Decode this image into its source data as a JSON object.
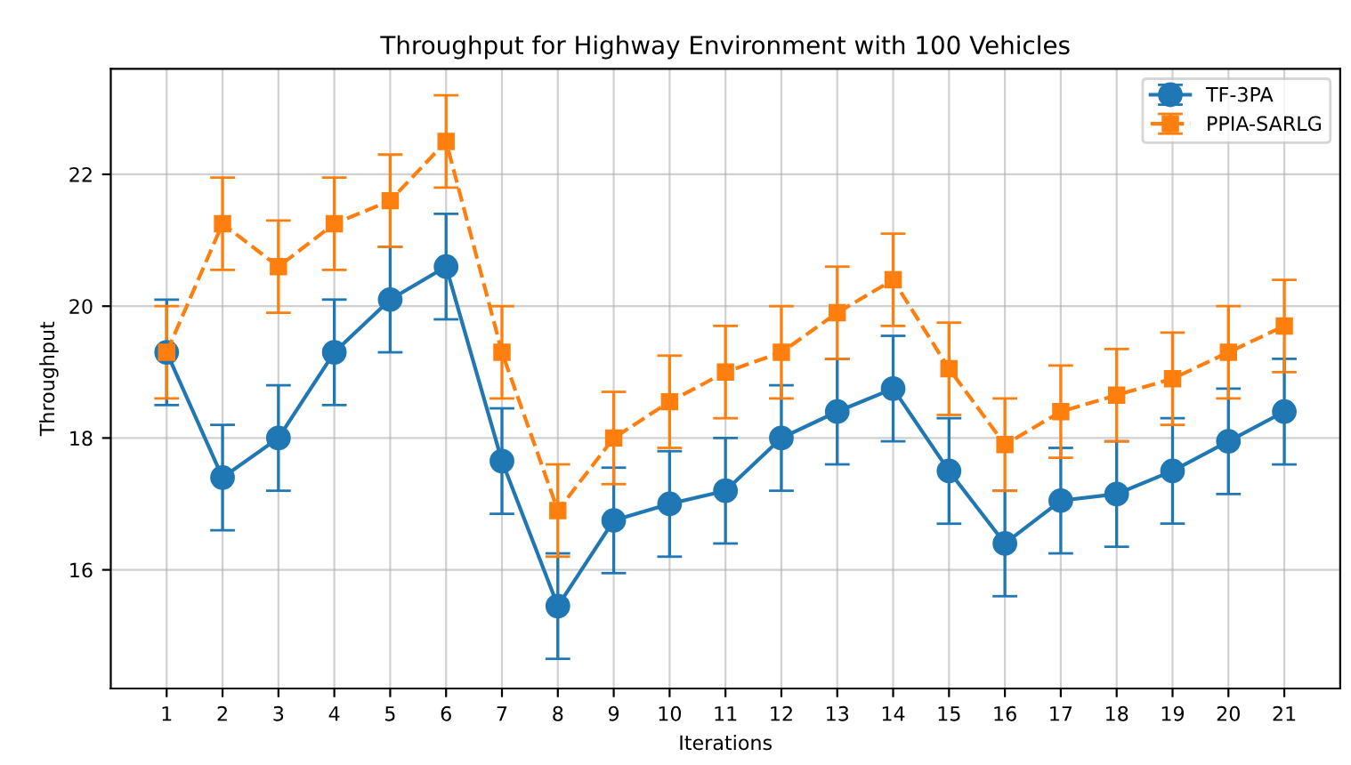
{
  "chart_data": {
    "type": "line",
    "title": "Throughput for Highway Environment with 100 Vehicles",
    "xlabel": "Iterations",
    "ylabel": "Throughput",
    "x": [
      1,
      2,
      3,
      4,
      5,
      6,
      7,
      8,
      9,
      10,
      11,
      12,
      13,
      14,
      15,
      16,
      17,
      18,
      19,
      20,
      21
    ],
    "series": [
      {
        "name": "TF-3PA",
        "color": "#1f77b4",
        "marker": "circle",
        "line_style": "solid",
        "values": [
          19.3,
          17.4,
          18.0,
          19.3,
          20.1,
          20.6,
          17.65,
          15.45,
          16.75,
          17.0,
          17.2,
          18.0,
          18.4,
          18.75,
          17.5,
          16.4,
          17.05,
          17.15,
          17.5,
          17.95,
          18.4
        ],
        "errors": [
          0.8,
          0.8,
          0.8,
          0.8,
          0.8,
          0.8,
          0.8,
          0.8,
          0.8,
          0.8,
          0.8,
          0.8,
          0.8,
          0.8,
          0.8,
          0.8,
          0.8,
          0.8,
          0.8,
          0.8,
          0.8
        ]
      },
      {
        "name": "PPIA-SARLG",
        "color": "#ff7f0e",
        "marker": "square",
        "line_style": "dashed",
        "values": [
          19.3,
          21.25,
          20.6,
          21.25,
          21.6,
          22.5,
          19.3,
          16.9,
          18.0,
          18.55,
          19.0,
          19.3,
          19.9,
          20.4,
          19.05,
          17.9,
          18.4,
          18.65,
          18.9,
          19.3,
          19.7
        ],
        "errors": [
          0.7,
          0.7,
          0.7,
          0.7,
          0.7,
          0.7,
          0.7,
          0.7,
          0.7,
          0.7,
          0.7,
          0.7,
          0.7,
          0.7,
          0.7,
          0.7,
          0.7,
          0.7,
          0.7,
          0.7,
          0.7
        ]
      }
    ],
    "xlim": [
      0,
      22
    ],
    "xticks": [
      1,
      2,
      3,
      4,
      5,
      6,
      7,
      8,
      9,
      10,
      11,
      12,
      13,
      14,
      15,
      16,
      17,
      18,
      19,
      20,
      21
    ],
    "ylim": [
      14.2,
      23.6
    ],
    "yticks": [
      16,
      18,
      20,
      22
    ],
    "grid": true,
    "legend": "top right"
  }
}
